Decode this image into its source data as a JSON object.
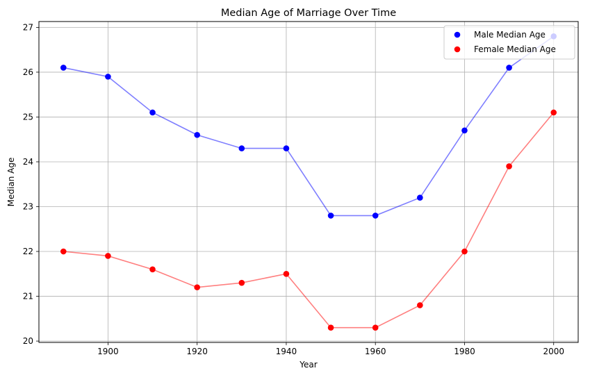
{
  "chart_data": {
    "type": "line",
    "title": "Median Age of Marriage Over Time",
    "xlabel": "Year",
    "ylabel": "Median Age",
    "x": [
      1890,
      1900,
      1910,
      1920,
      1930,
      1940,
      1950,
      1960,
      1970,
      1980,
      1990,
      2000
    ],
    "series": [
      {
        "name": "Male Median Age",
        "color": "#0000ff",
        "values": [
          26.1,
          25.9,
          25.1,
          24.6,
          24.3,
          24.3,
          22.8,
          22.8,
          23.2,
          24.7,
          26.1,
          26.8
        ]
      },
      {
        "name": "Female Median Age",
        "color": "#ff0000",
        "values": [
          22.0,
          21.9,
          21.6,
          21.2,
          21.3,
          21.5,
          20.3,
          20.3,
          20.8,
          22.0,
          23.9,
          25.1
        ]
      }
    ],
    "xlim": [
      1884.5,
      2005.5
    ],
    "ylim": [
      19.97,
      27.13
    ],
    "xticks": [
      "1900",
      "1920",
      "1940",
      "1960",
      "1980",
      "2000"
    ],
    "yticks": [
      "20",
      "21",
      "22",
      "23",
      "24",
      "25",
      "26",
      "27"
    ],
    "grid": true,
    "legend_position": "top-right",
    "markers": true
  }
}
